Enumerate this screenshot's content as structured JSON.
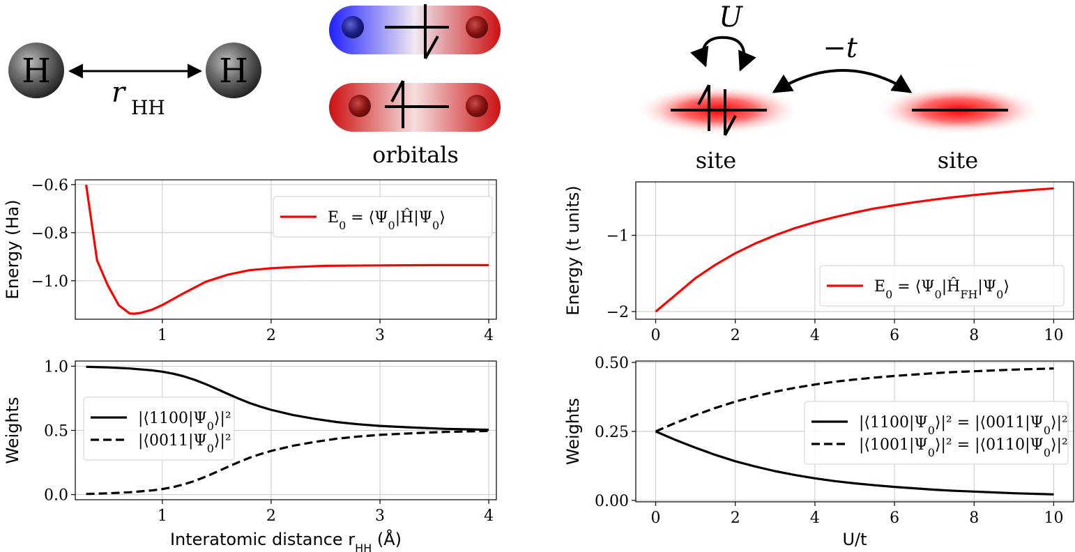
{
  "diagram": {
    "h_atom_label": "H",
    "bond_label": "r",
    "bond_label_sub": "HH",
    "orbitals_caption": "orbitals",
    "hubbard_U": "U",
    "hubbard_hop": "−t",
    "site_left": "site",
    "site_right": "site"
  },
  "chart_data": [
    {
      "id": "h2-energy",
      "type": "line",
      "ylabel": "Energy (Ha)",
      "xlabel": "",
      "xlim": [
        0.2,
        4.07
      ],
      "ylim": [
        -1.16,
        -0.58
      ],
      "xticks": [
        "1",
        "2",
        "3",
        "4"
      ],
      "yticks": [
        "−0.6",
        "−0.8",
        "−1.0"
      ],
      "xtick_values": [
        1,
        2,
        3,
        4
      ],
      "ytick_values": [
        -0.6,
        -0.8,
        -1.0
      ],
      "grid": true,
      "legend_position": "top-right",
      "series": [
        {
          "name": "E_0 = ⟨Ψ_0|Ĥ|Ψ_0⟩",
          "color": "#ff0000",
          "style": "solid",
          "x": [
            0.3,
            0.4,
            0.5,
            0.6,
            0.7,
            0.74,
            0.8,
            0.9,
            1.0,
            1.1,
            1.2,
            1.4,
            1.6,
            1.8,
            2.0,
            2.2,
            2.5,
            3.0,
            3.5,
            4.0
          ],
          "y": [
            -0.601,
            -0.915,
            -1.02,
            -1.102,
            -1.136,
            -1.137,
            -1.134,
            -1.121,
            -1.101,
            -1.076,
            -1.051,
            -1.004,
            -0.975,
            -0.956,
            -0.948,
            -0.943,
            -0.938,
            -0.936,
            -0.935,
            -0.935
          ]
        }
      ]
    },
    {
      "id": "h2-weights",
      "type": "line",
      "ylabel": "Weights",
      "xlabel": "Interatomic distance r_HH (Å)",
      "xlim": [
        0.2,
        4.07
      ],
      "ylim": [
        -0.04,
        1.04
      ],
      "xticks": [
        "1",
        "2",
        "3",
        "4"
      ],
      "yticks": [
        "1.0",
        "0.5",
        "0.0"
      ],
      "xtick_values": [
        1,
        2,
        3,
        4
      ],
      "ytick_values": [
        1.0,
        0.5,
        0.0
      ],
      "grid": true,
      "legend_position": "center-left",
      "series": [
        {
          "name": "|⟨1100|Ψ_0⟩|²",
          "color": "#000000",
          "style": "solid",
          "x": [
            0.3,
            0.5,
            0.7,
            0.9,
            1.0,
            1.1,
            1.2,
            1.3,
            1.4,
            1.5,
            1.6,
            1.7,
            1.8,
            1.9,
            2.0,
            2.2,
            2.4,
            2.6,
            2.8,
            3.0,
            3.3,
            3.6,
            4.0
          ],
          "y": [
            0.995,
            0.99,
            0.982,
            0.968,
            0.957,
            0.941,
            0.92,
            0.893,
            0.86,
            0.823,
            0.785,
            0.748,
            0.714,
            0.685,
            0.66,
            0.62,
            0.59,
            0.565,
            0.548,
            0.535,
            0.522,
            0.512,
            0.505
          ]
        },
        {
          "name": "|⟨0011|Ψ_0⟩|²",
          "color": "#000000",
          "style": "dashed",
          "x": [
            0.3,
            0.5,
            0.7,
            0.9,
            1.0,
            1.1,
            1.2,
            1.3,
            1.4,
            1.5,
            1.6,
            1.7,
            1.8,
            1.9,
            2.0,
            2.2,
            2.4,
            2.6,
            2.8,
            3.0,
            3.3,
            3.6,
            4.0
          ],
          "y": [
            0.005,
            0.01,
            0.018,
            0.032,
            0.043,
            0.059,
            0.08,
            0.107,
            0.14,
            0.177,
            0.215,
            0.252,
            0.286,
            0.315,
            0.34,
            0.38,
            0.41,
            0.435,
            0.452,
            0.465,
            0.478,
            0.488,
            0.495
          ]
        }
      ]
    },
    {
      "id": "hubbard-energy",
      "type": "line",
      "ylabel": "Energy (t units)",
      "xlabel": "",
      "xlim": [
        -0.5,
        10.5
      ],
      "ylim": [
        -2.1,
        -0.3
      ],
      "xticks": [
        "0",
        "2",
        "4",
        "6",
        "8",
        "10"
      ],
      "yticks": [
        "−1",
        "−2"
      ],
      "xtick_values": [
        0,
        2,
        4,
        6,
        8,
        10
      ],
      "ytick_values": [
        -1,
        -2
      ],
      "grid": true,
      "legend_position": "lower-right",
      "series": [
        {
          "name": "E_0 = ⟨Ψ_0|Ĥ_FH|Ψ_0⟩",
          "color": "#ff0000",
          "style": "solid",
          "x": [
            0,
            0.5,
            1,
            1.5,
            2,
            2.5,
            3,
            3.5,
            4,
            4.5,
            5,
            5.5,
            6,
            6.5,
            7,
            7.5,
            8,
            8.5,
            9,
            9.5,
            10
          ],
          "y": [
            -2.0,
            -1.781,
            -1.562,
            -1.386,
            -1.236,
            -1.108,
            -1.0,
            -0.906,
            -0.828,
            -0.762,
            -0.702,
            -0.648,
            -0.606,
            -0.567,
            -0.531,
            -0.5,
            -0.472,
            -0.447,
            -0.424,
            -0.403,
            -0.385
          ]
        }
      ]
    },
    {
      "id": "hubbard-weights",
      "type": "line",
      "ylabel": "Weights",
      "xlabel": "U/t",
      "xlim": [
        -0.5,
        10.5
      ],
      "ylim": [
        -0.005,
        0.505
      ],
      "xticks": [
        "0",
        "2",
        "4",
        "6",
        "8",
        "10"
      ],
      "yticks": [
        "0.50",
        "0.25",
        "0.00"
      ],
      "xtick_values": [
        0,
        2,
        4,
        6,
        8,
        10
      ],
      "ytick_values": [
        0.5,
        0.25,
        0.0
      ],
      "grid": true,
      "legend_position": "center-right",
      "series": [
        {
          "name": "|⟨1100|Ψ_0⟩|² = |⟨0011|Ψ_0⟩|²",
          "color": "#000000",
          "style": "solid",
          "x": [
            0,
            0.5,
            1,
            1.5,
            2,
            2.5,
            3,
            3.5,
            4,
            4.5,
            5,
            5.5,
            6,
            6.5,
            7,
            7.5,
            8,
            8.5,
            9,
            9.5,
            10
          ],
          "y": [
            0.25,
            0.219,
            0.191,
            0.165,
            0.142,
            0.123,
            0.106,
            0.092,
            0.08,
            0.07,
            0.062,
            0.055,
            0.049,
            0.044,
            0.039,
            0.035,
            0.032,
            0.029,
            0.026,
            0.024,
            0.022
          ]
        },
        {
          "name": "|⟨1001|Ψ_0⟩|² = |⟨0110|Ψ_0⟩|²",
          "color": "#000000",
          "style": "dashed",
          "x": [
            0,
            0.5,
            1,
            1.5,
            2,
            2.5,
            3,
            3.5,
            4,
            4.5,
            5,
            5.5,
            6,
            6.5,
            7,
            7.5,
            8,
            8.5,
            9,
            9.5,
            10
          ],
          "y": [
            0.25,
            0.281,
            0.309,
            0.335,
            0.358,
            0.377,
            0.394,
            0.408,
            0.42,
            0.43,
            0.438,
            0.445,
            0.451,
            0.456,
            0.461,
            0.465,
            0.468,
            0.471,
            0.474,
            0.476,
            0.478
          ]
        }
      ]
    }
  ]
}
